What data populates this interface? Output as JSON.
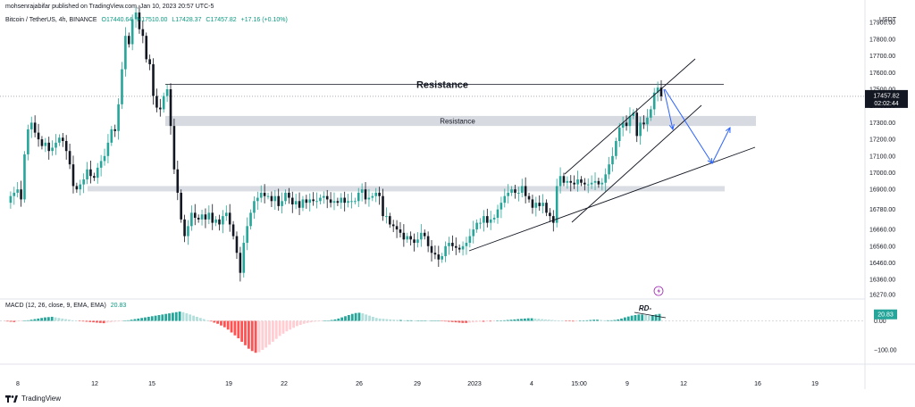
{
  "header": {
    "published_by": "mohsenrajabifar published on TradingView.com, Jan 10, 2023 20:57 UTC-5"
  },
  "symbol_bar": {
    "name": "Bitcoin / TetherUS, 4h, BINANCE",
    "open": "O17440.64",
    "high": "H17510.00",
    "low": "L17428.37",
    "close": "C17457.82",
    "change": "+17.16 (+0.10%)"
  },
  "footer": {
    "brand": "TradingView"
  },
  "colors": {
    "up": "#26a69a",
    "down": "#131722",
    "macd_up_strong": "#26a69a",
    "macd_up_weak": "#b2dfdb",
    "macd_down_strong": "#ff5252",
    "macd_down_weak": "#ffcdd2",
    "arrow": "#2962ff",
    "zone": "#c7c7c7"
  },
  "chart_data": [
    {
      "type": "candlestick",
      "currency": "USDT",
      "ylim": [
        16270,
        17960
      ],
      "y_ticks": [
        17900,
        17800,
        17700,
        17600,
        17500,
        17400,
        17300,
        17200,
        17100,
        17000,
        16900,
        16780,
        16660,
        16560,
        16460,
        16360,
        16270
      ],
      "x_ticks": [
        "8",
        "12",
        "15",
        "19",
        "22",
        "26",
        "29",
        "2023",
        "4",
        "15:00",
        "9",
        "12",
        "16",
        "19"
      ],
      "last_price": "17457.82",
      "countdown": "02:02:44",
      "annotations": {
        "resistance_line": "Resistance",
        "resistance_zone": "Resistance"
      },
      "levels": {
        "resistance_line": 17530,
        "resistance_zone": [
          17280,
          17340
        ],
        "support_zone": [
          16890,
          16920
        ]
      },
      "price_path": [
        16820,
        16860,
        16880,
        16900,
        16840,
        17110,
        17260,
        17300,
        17240,
        17200,
        17160,
        17180,
        17130,
        17150,
        17180,
        17210,
        17190,
        17130,
        17050,
        16920,
        16900,
        16930,
        16960,
        17020,
        16980,
        16970,
        17030,
        17070,
        17100,
        17180,
        17260,
        17250,
        17410,
        17620,
        17820,
        17770,
        17920,
        17960,
        17860,
        17820,
        17680,
        17650,
        17460,
        17390,
        17380,
        17460,
        17500,
        17280,
        17020,
        16880,
        16720,
        16620,
        16680,
        16760,
        16730,
        16720,
        16750,
        16720,
        16760,
        16700,
        16720,
        16690,
        16740,
        16760,
        16690,
        16620,
        16520,
        16400,
        16580,
        16680,
        16760,
        16830,
        16850,
        16880,
        16860,
        16860,
        16830,
        16860,
        16800,
        16830,
        16880,
        16850,
        16810,
        16830,
        16790,
        16840,
        16820,
        16840,
        16830,
        16830,
        16850,
        16860,
        16840,
        16820,
        16830,
        16820,
        16850,
        16820,
        16830,
        16830,
        16830,
        16880,
        16900,
        16840,
        16850,
        16860,
        16880,
        16860,
        16740,
        16740,
        16690,
        16680,
        16660,
        16640,
        16600,
        16620,
        16600,
        16580,
        16600,
        16640,
        16620,
        16560,
        16520,
        16510,
        16480,
        16500,
        16560,
        16580,
        16560,
        16550,
        16540,
        16560,
        16580,
        16620,
        16660,
        16700,
        16700,
        16740,
        16700,
        16720,
        16730,
        16780,
        16820,
        16860,
        16880,
        16900,
        16880,
        16880,
        16920,
        16860,
        16840,
        16790,
        16820,
        16800,
        16820,
        16760,
        16740,
        16700,
        16920,
        16980,
        16940,
        16950,
        16940,
        16930,
        16960,
        16940,
        16930,
        16930,
        16940,
        16950,
        16930,
        16940,
        16990,
        17050,
        17100,
        17190,
        17270,
        17300,
        17280,
        17340,
        17360,
        17220,
        17300,
        17290,
        17330,
        17380,
        17480,
        17510,
        17457.82
      ]
    },
    {
      "type": "bar",
      "name": "MACD (12, 26, close, 9, EMA, EMA)",
      "params": "MACD (12, 26, close, 9, EMA, EMA)",
      "value": "20.83",
      "ylim": [
        -140,
        60
      ],
      "y_ticks": [
        0.0,
        -100.0
      ],
      "y_tick_labels": [
        "0.00",
        "−100.00"
      ],
      "annotation": "RD-",
      "histogram": [
        -2,
        -3,
        -4,
        -2,
        -1,
        0,
        2,
        4,
        6,
        8,
        10,
        12,
        13,
        14,
        12,
        10,
        8,
        6,
        4,
        2,
        0,
        -1,
        -2,
        -3,
        -4,
        -5,
        -6,
        -7,
        -8,
        -6,
        -5,
        -3,
        -2,
        -1,
        0,
        2,
        4,
        6,
        8,
        10,
        12,
        14,
        16,
        18,
        20,
        22,
        24,
        26,
        28,
        30,
        32,
        30,
        26,
        22,
        18,
        14,
        10,
        6,
        2,
        -2,
        -6,
        -10,
        -16,
        -22,
        -30,
        -40,
        -50,
        -60,
        -72,
        -84,
        -96,
        -104,
        -110,
        -108,
        -100,
        -92,
        -82,
        -72,
        -62,
        -52,
        -44,
        -36,
        -30,
        -24,
        -18,
        -14,
        -10,
        -7,
        -5,
        -3,
        -2,
        -1,
        0,
        1,
        3,
        5,
        8,
        12,
        16,
        20,
        24,
        27,
        28,
        26,
        22,
        18,
        14,
        10,
        8,
        7,
        6,
        5,
        4,
        3,
        3,
        2,
        2,
        2,
        1,
        1,
        1,
        1,
        0,
        0,
        0,
        0,
        -1,
        -2,
        -3,
        -4,
        -5,
        -6,
        -7,
        -7,
        -6,
        -5,
        -4,
        -3,
        -3,
        -2,
        -2,
        -1,
        0,
        1,
        2,
        3,
        4,
        5,
        6,
        7,
        8,
        9,
        9,
        8,
        7,
        6,
        5,
        4,
        3,
        2,
        1,
        0,
        -1,
        -1,
        -2,
        -1,
        0,
        1,
        2,
        3,
        4,
        4,
        3,
        2,
        2,
        2,
        3,
        5,
        8,
        12,
        15,
        18,
        20,
        22,
        22,
        20,
        18,
        20,
        22,
        24
      ]
    }
  ]
}
